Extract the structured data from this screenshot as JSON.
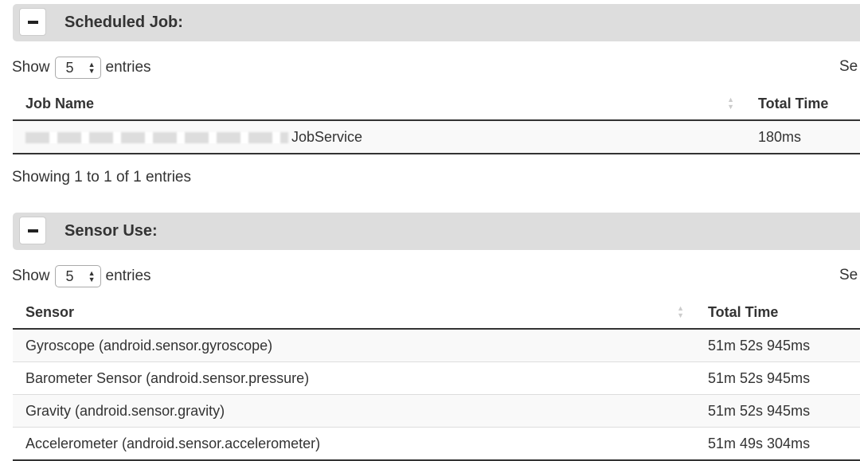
{
  "scheduled": {
    "title": "Scheduled Job:",
    "show": "Show",
    "entries": "entries",
    "length": "5",
    "search": "Se",
    "columns": [
      "Job Name",
      "Total Time"
    ],
    "rows": [
      {
        "name": "JobService",
        "time": "180ms"
      }
    ],
    "info": "Showing 1 to 1 of 1 entries"
  },
  "sensor": {
    "title": "Sensor Use:",
    "show": "Show",
    "entries": "entries",
    "length": "5",
    "search": "Se",
    "columns": [
      "Sensor",
      "Total Time"
    ],
    "rows": [
      {
        "name": "Gyroscope (android.sensor.gyroscope)",
        "time": "51m 52s 945ms"
      },
      {
        "name": "Barometer Sensor (android.sensor.pressure)",
        "time": "51m 52s 945ms"
      },
      {
        "name": "Gravity (android.sensor.gravity)",
        "time": "51m 52s 945ms"
      },
      {
        "name": "Accelerometer (android.sensor.accelerometer)",
        "time": "51m 49s 304ms"
      }
    ]
  }
}
